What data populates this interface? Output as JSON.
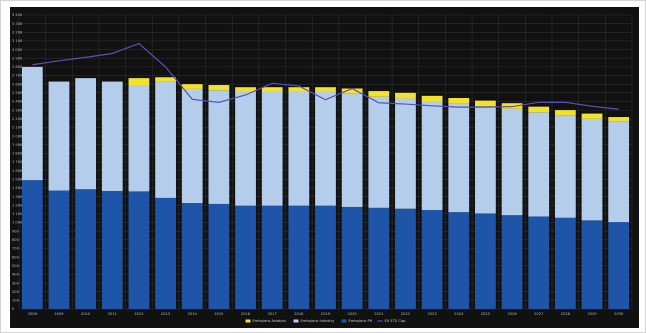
{
  "chart_data": {
    "type": "bar",
    "stacked": true,
    "categories": [
      "2008",
      "2009",
      "2010",
      "2011",
      "2012",
      "2013",
      "2014",
      "2015",
      "2016",
      "2017",
      "2018",
      "2019",
      "2020",
      "2021",
      "2022",
      "2023",
      "2024",
      "2025",
      "2026",
      "2027",
      "2028",
      "2029",
      "2030"
    ],
    "series": [
      {
        "name": "Emissions PH",
        "kind": "bar",
        "color": "#1f55a8",
        "values": [
          1490,
          1370,
          1385,
          1365,
          1360,
          1285,
          1225,
          1215,
          1195,
          1195,
          1195,
          1195,
          1180,
          1170,
          1160,
          1145,
          1120,
          1105,
          1085,
          1070,
          1055,
          1025,
          1005
        ]
      },
      {
        "name": "Emissions Industry",
        "kind": "bar",
        "color": "#b3cdea",
        "values": [
          1310,
          1260,
          1285,
          1265,
          1225,
          1345,
          1320,
          1315,
          1315,
          1315,
          1315,
          1315,
          1310,
          1285,
          1275,
          1255,
          1255,
          1240,
          1230,
          1205,
          1180,
          1175,
          1160
        ]
      },
      {
        "name": "Emissions Aviation",
        "kind": "bar",
        "color": "#f3e22a",
        "values": [
          0,
          0,
          0,
          0,
          85,
          50,
          55,
          60,
          55,
          55,
          55,
          55,
          60,
          65,
          65,
          65,
          65,
          65,
          65,
          65,
          65,
          60,
          55
        ]
      },
      {
        "name": "EU ETS Cap",
        "kind": "line",
        "color": "#5b4fb3",
        "values": [
          2825,
          2870,
          2910,
          2955,
          3070,
          2800,
          2425,
          2390,
          2475,
          2610,
          2580,
          2420,
          2550,
          2385,
          2370,
          2350,
          2335,
          2335,
          2340,
          2390,
          2390,
          2345,
          2310
        ]
      }
    ],
    "ylim": [
      0,
      3400
    ],
    "yticks": [
      0,
      100,
      200,
      300,
      400,
      500,
      600,
      700,
      800,
      900,
      1000,
      1100,
      1200,
      1300,
      1400,
      1500,
      1600,
      1700,
      1800,
      1900,
      2000,
      2100,
      2200,
      2300,
      2400,
      2500,
      2600,
      2700,
      2800,
      2900,
      3000,
      3100,
      3200,
      3300,
      3400
    ],
    "ytick_labels": [
      "0",
      "100",
      "200",
      "300",
      "400",
      "500",
      "600",
      "700",
      "800",
      "900",
      "1 000",
      "1 100",
      "1 200",
      "1 300",
      "1 400",
      "1 500",
      "1 600",
      "1 700",
      "1 800",
      "1 900",
      "2 000",
      "2 100",
      "2 200",
      "2 300",
      "2 400",
      "2 500",
      "2 600",
      "2 700",
      "2 800",
      "2 900",
      "3 000",
      "3 100",
      "3 200",
      "3 300",
      "3 400"
    ],
    "legend_position": "bottom-center",
    "legend_order": [
      2,
      1,
      0,
      3
    ],
    "background": "#111111",
    "grid": true,
    "grid_color": "#2e2e2e"
  }
}
